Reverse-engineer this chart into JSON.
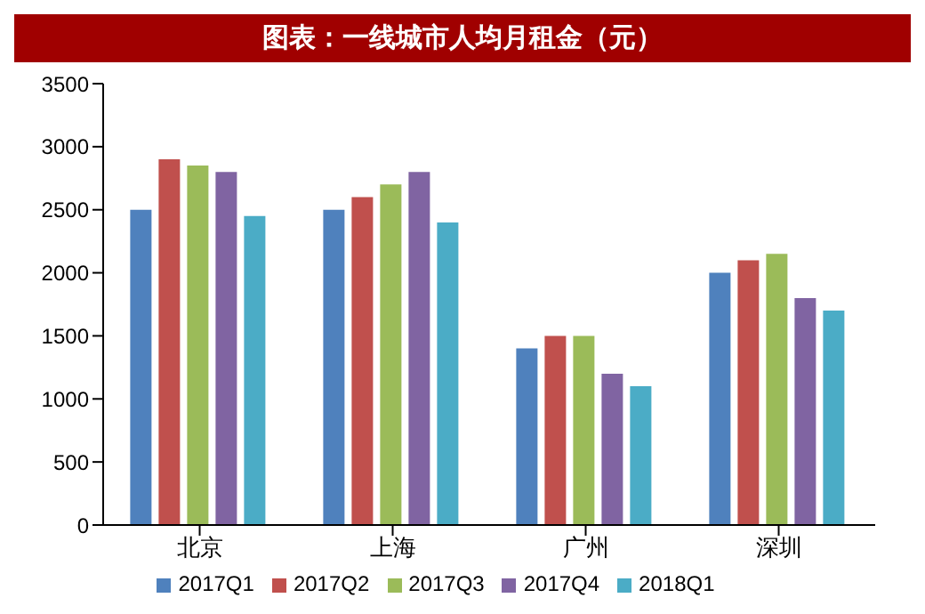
{
  "chart_data": {
    "type": "bar",
    "title": "图表：一线城市人均月租金（元）",
    "categories": [
      "北京",
      "上海",
      "广州",
      "深圳"
    ],
    "series": [
      {
        "name": "2017Q1",
        "color": "#4f81bd",
        "values": [
          2500,
          2500,
          1400,
          2000
        ]
      },
      {
        "name": "2017Q2",
        "color": "#c0504d",
        "values": [
          2900,
          2600,
          1500,
          2100
        ]
      },
      {
        "name": "2017Q3",
        "color": "#9bbb59",
        "values": [
          2850,
          2700,
          1500,
          2150
        ]
      },
      {
        "name": "2017Q4",
        "color": "#8064a2",
        "values": [
          2800,
          2800,
          1200,
          1800
        ]
      },
      {
        "name": "2018Q1",
        "color": "#4bacc6",
        "values": [
          2450,
          2400,
          1100,
          1700
        ]
      }
    ],
    "ylim": [
      0,
      3500
    ],
    "yticks": [
      0,
      500,
      1000,
      1500,
      2000,
      2500,
      3000,
      3500
    ],
    "grid": false,
    "legend": "bottom"
  }
}
